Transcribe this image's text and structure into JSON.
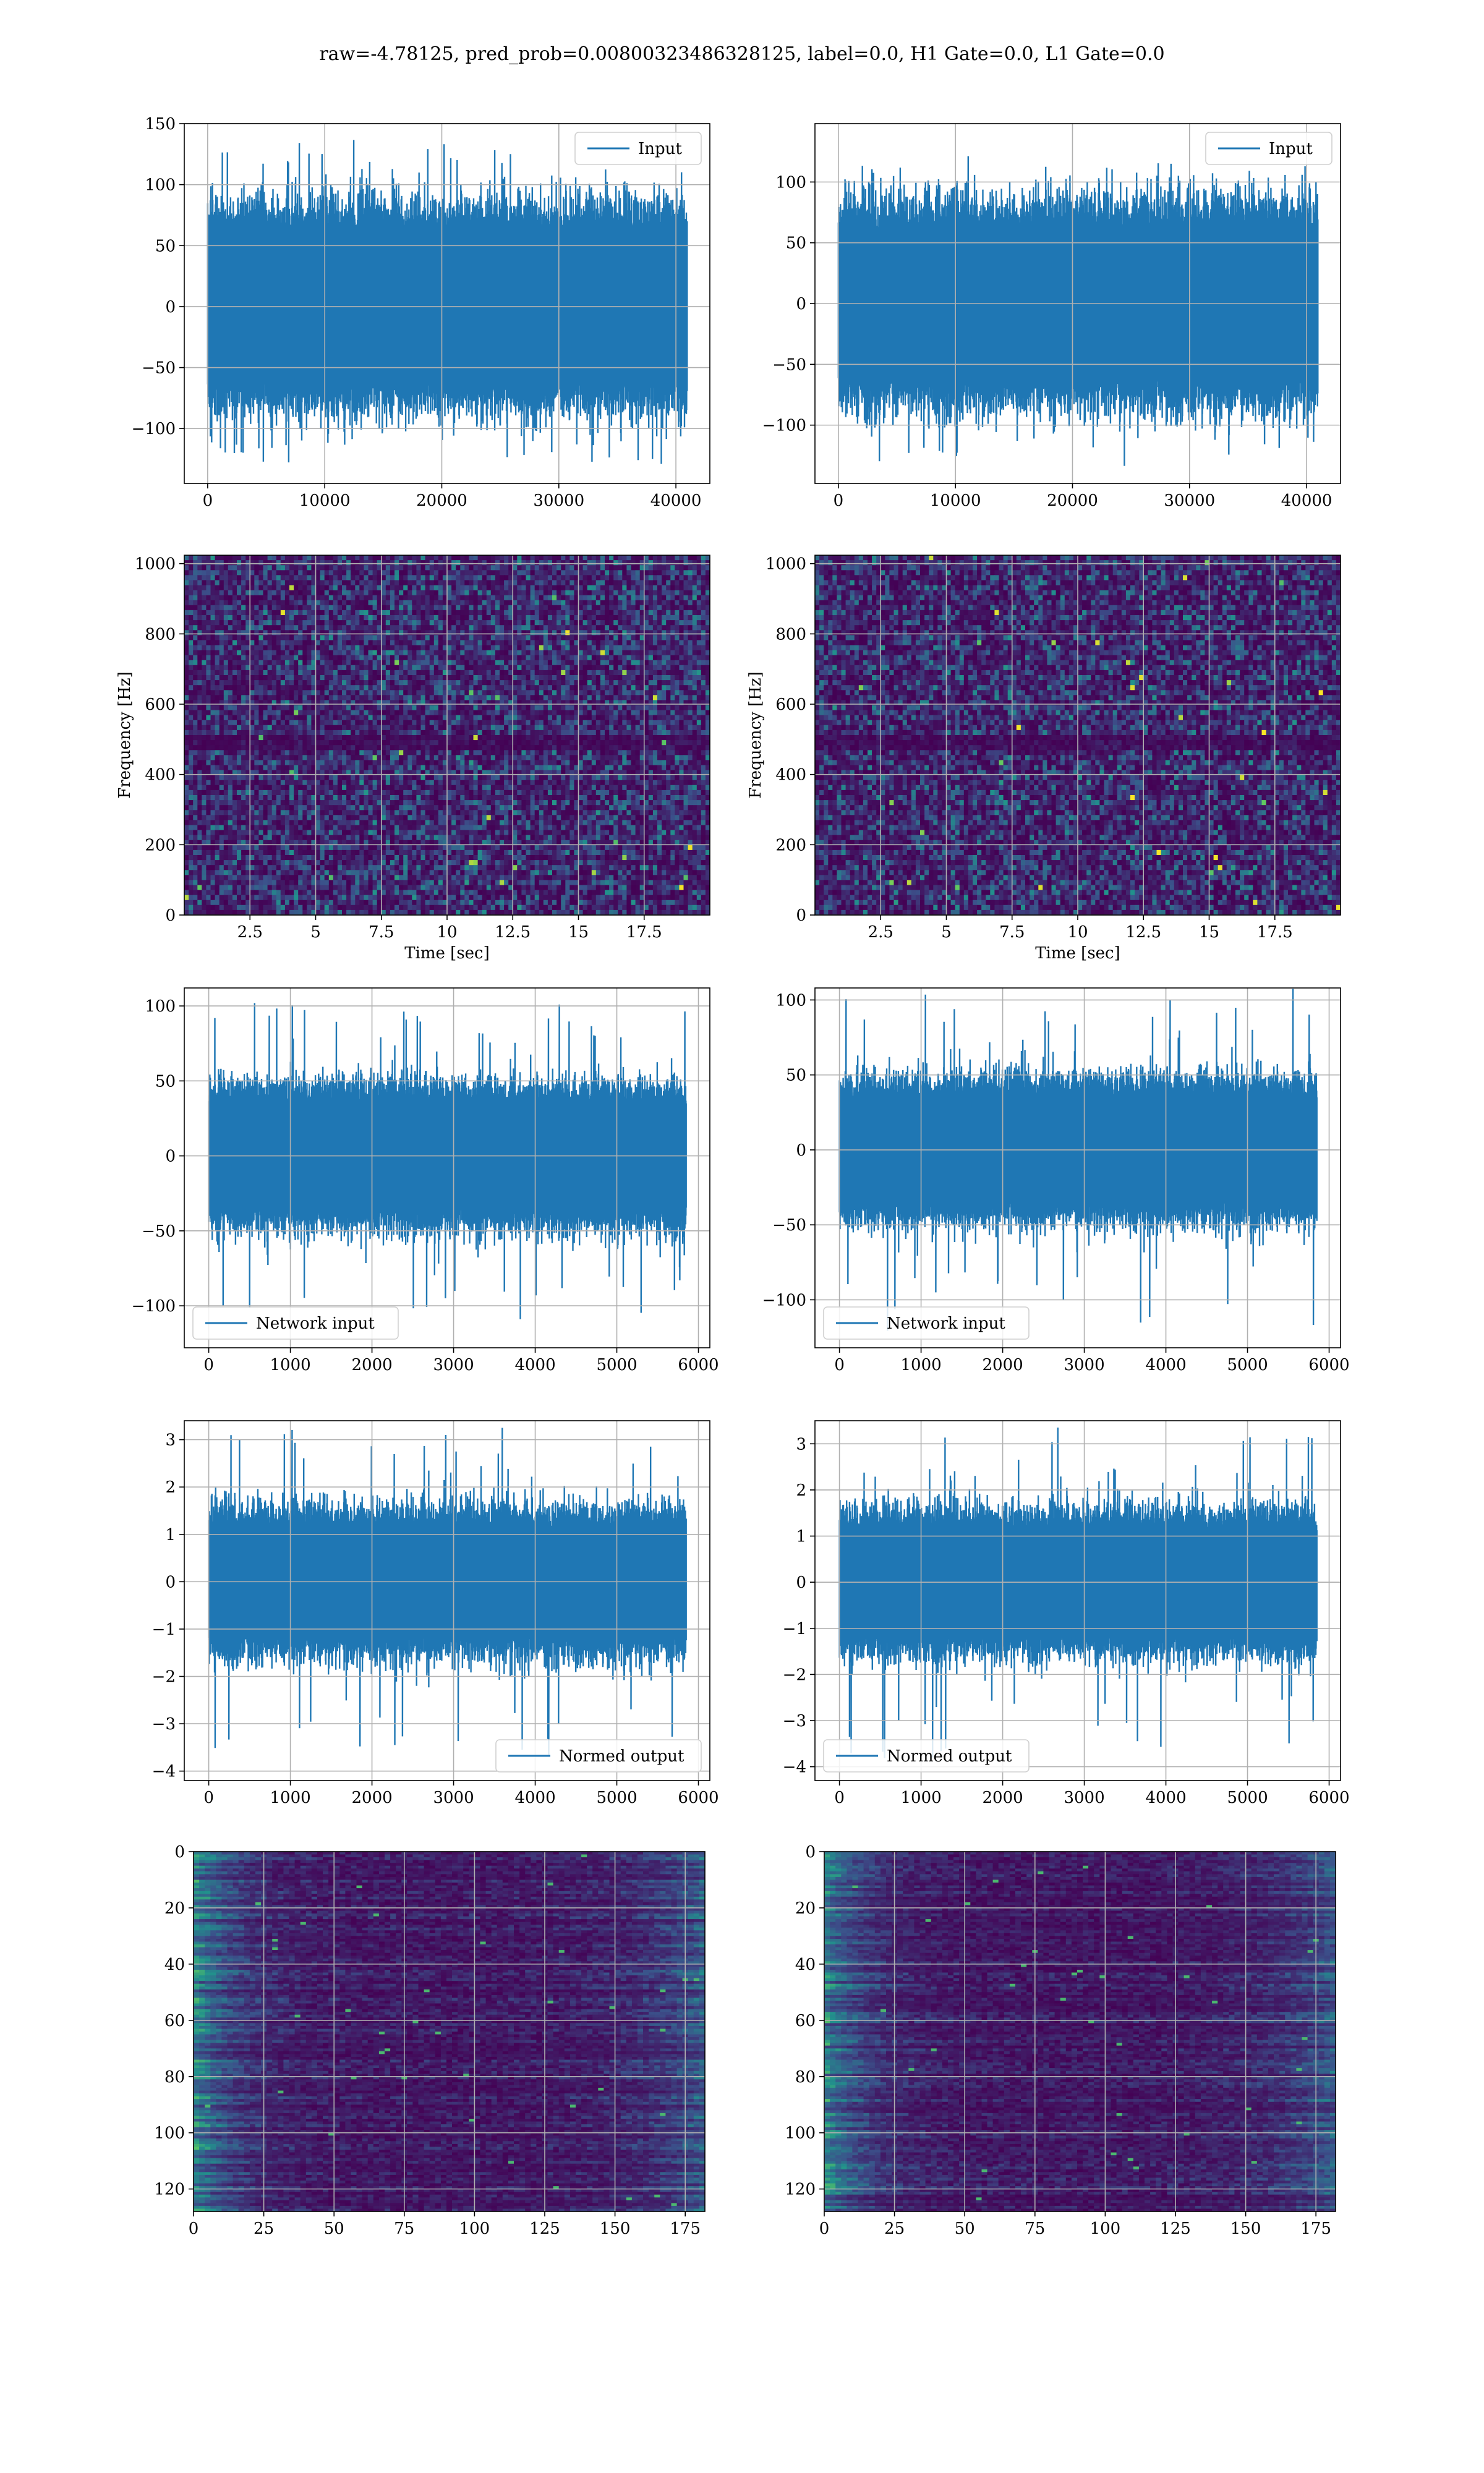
{
  "figure": {
    "title": "raw=-4.78125, pred_prob=0.00800323486328125, label=0.0, H1 Gate=0.0, L1 Gate=0.0",
    "colors": {
      "trace": "#1f77b4",
      "grid": "#b0b0b0",
      "viridis_low": "#440154",
      "viridis_mid": "#21918c",
      "viridis_high": "#fde725"
    }
  },
  "chart_data": [
    {
      "id": "input-h1",
      "type": "line",
      "legend": "Input",
      "legend_loc": "upper right",
      "grid": true,
      "xlim": [
        -2000,
        42900
      ],
      "ylim": [
        -145,
        150
      ],
      "xticks": [
        0,
        10000,
        20000,
        30000,
        40000
      ],
      "yticks": [
        -100,
        -50,
        0,
        50,
        100,
        150
      ],
      "series": [
        {
          "name": "Input",
          "n_samples": 40960,
          "x_range": [
            0,
            40960
          ],
          "band": [
            -70,
            70
          ],
          "peak_max": 137,
          "peak_min": -130
        }
      ]
    },
    {
      "id": "input-l1",
      "type": "line",
      "legend": "Input",
      "legend_loc": "upper right",
      "grid": true,
      "xlim": [
        -2000,
        42900
      ],
      "ylim": [
        -148,
        148
      ],
      "xticks": [
        0,
        10000,
        20000,
        30000,
        40000
      ],
      "yticks": [
        -100,
        -50,
        0,
        50,
        100
      ],
      "series": [
        {
          "name": "Input",
          "n_samples": 40960,
          "x_range": [
            0,
            40960
          ],
          "band": [
            -70,
            70
          ],
          "peak_max": 115,
          "peak_min": -135
        }
      ]
    },
    {
      "id": "spectrogram-h1",
      "type": "heatmap",
      "colormap": "viridis",
      "grid": true,
      "xlabel": "Time [sec]",
      "ylabel": "Frequency [Hz]",
      "xlim": [
        0,
        20
      ],
      "ylim": [
        0,
        1024
      ],
      "xticks": [
        2.5,
        5.0,
        7.5,
        10.0,
        12.5,
        15.0,
        17.5
      ],
      "yticks": [
        0,
        200,
        400,
        600,
        800,
        1000
      ],
      "dark_band_hz": 500
    },
    {
      "id": "spectrogram-l1",
      "type": "heatmap",
      "colormap": "viridis",
      "grid": true,
      "xlabel": "Time [sec]",
      "ylabel": "Frequency [Hz]",
      "xlim": [
        0,
        20
      ],
      "ylim": [
        0,
        1024
      ],
      "xticks": [
        2.5,
        5.0,
        7.5,
        10.0,
        12.5,
        15.0,
        17.5
      ],
      "yticks": [
        0,
        200,
        400,
        600,
        800,
        1000
      ],
      "dark_band_hz": 500
    },
    {
      "id": "network-input-h1",
      "type": "line",
      "legend": "Network input",
      "legend_loc": "lower left",
      "grid": true,
      "xlim": [
        -300,
        6140
      ],
      "ylim": [
        -128,
        112
      ],
      "xticks": [
        0,
        1000,
        2000,
        3000,
        4000,
        5000,
        6000
      ],
      "yticks": [
        -100,
        -50,
        0,
        50,
        100
      ],
      "series": [
        {
          "name": "Network input",
          "n_samples": 5850,
          "x_range": [
            0,
            5850
          ],
          "band": [
            -40,
            40
          ],
          "peak_max": 104,
          "peak_min": -110
        }
      ]
    },
    {
      "id": "network-input-l1",
      "type": "line",
      "legend": "Network input",
      "legend_loc": "lower left",
      "grid": true,
      "xlim": [
        -300,
        6140
      ],
      "ylim": [
        -132,
        108
      ],
      "xticks": [
        0,
        1000,
        2000,
        3000,
        4000,
        5000,
        6000
      ],
      "yticks": [
        -100,
        -50,
        0,
        50,
        100
      ],
      "series": [
        {
          "name": "Network input",
          "n_samples": 5850,
          "x_range": [
            0,
            5850
          ],
          "band": [
            -40,
            40
          ],
          "peak_max": 108,
          "peak_min": -122
        }
      ]
    },
    {
      "id": "normed-output-h1",
      "type": "line",
      "legend": "Normed output",
      "legend_loc": "lower right",
      "grid": true,
      "xlim": [
        -300,
        6140
      ],
      "ylim": [
        -4.2,
        3.4
      ],
      "xticks": [
        0,
        1000,
        2000,
        3000,
        4000,
        5000,
        6000
      ],
      "yticks": [
        -4,
        -3,
        -2,
        -1,
        0,
        1,
        2,
        3
      ],
      "series": [
        {
          "name": "Normed output",
          "n_samples": 5850,
          "x_range": [
            0,
            5850
          ],
          "band": [
            -1.3,
            1.3
          ],
          "peak_max": 3.3,
          "peak_min": -3.8
        }
      ]
    },
    {
      "id": "normed-output-l1",
      "type": "line",
      "legend": "Normed output",
      "legend_loc": "lower left",
      "grid": true,
      "xlim": [
        -300,
        6140
      ],
      "ylim": [
        -4.3,
        3.5
      ],
      "xticks": [
        0,
        1000,
        2000,
        3000,
        4000,
        5000,
        6000
      ],
      "yticks": [
        -4,
        -3,
        -2,
        -1,
        0,
        1,
        2,
        3
      ],
      "series": [
        {
          "name": "Normed output",
          "n_samples": 5850,
          "x_range": [
            0,
            5850
          ],
          "band": [
            -1.3,
            1.3
          ],
          "peak_max": 3.4,
          "peak_min": -3.9
        }
      ]
    },
    {
      "id": "feature-map-h1",
      "type": "heatmap",
      "colormap": "viridis",
      "grid": true,
      "xlim": [
        0,
        182
      ],
      "ylim": [
        128,
        0
      ],
      "n_rows": 128,
      "n_cols": 182,
      "xticks": [
        0,
        25,
        50,
        75,
        100,
        125,
        150,
        175
      ],
      "yticks": [
        0,
        20,
        40,
        60,
        80,
        100,
        120
      ]
    },
    {
      "id": "feature-map-l1",
      "type": "heatmap",
      "colormap": "viridis",
      "grid": true,
      "xlim": [
        0,
        182
      ],
      "ylim": [
        128,
        0
      ],
      "n_rows": 128,
      "n_cols": 182,
      "xticks": [
        0,
        25,
        50,
        75,
        100,
        125,
        150,
        175
      ],
      "yticks": [
        0,
        20,
        40,
        60,
        80,
        100,
        120
      ]
    }
  ]
}
